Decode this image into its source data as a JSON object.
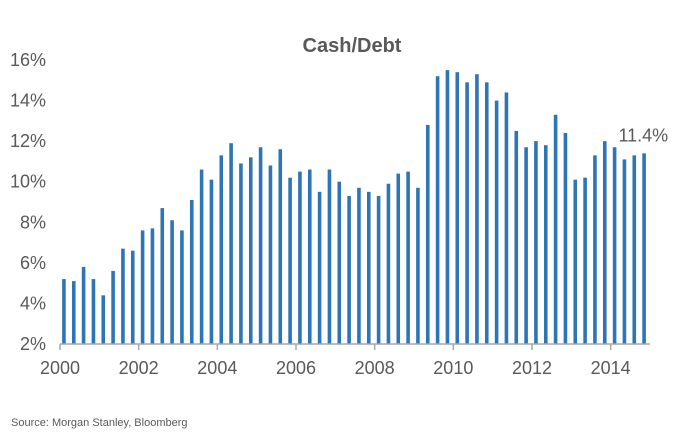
{
  "chart_data": {
    "type": "bar",
    "title": "Cash/Debt",
    "xlabel": "",
    "ylabel": "",
    "bar_color": "#2E75B6",
    "axis_color": "#A6A6A6",
    "text_color": "#595959",
    "ylim": [
      2,
      16
    ],
    "y_ticks": [
      2,
      4,
      6,
      8,
      10,
      12,
      14,
      16
    ],
    "y_tick_labels": [
      "2%",
      "4%",
      "6%",
      "8%",
      "10%",
      "12%",
      "14%",
      "16%"
    ],
    "xlim": [
      2000,
      2015
    ],
    "x_ticks": [
      2000,
      2002,
      2004,
      2006,
      2008,
      2010,
      2012,
      2014
    ],
    "x_tick_labels": [
      "2000",
      "2002",
      "2004",
      "2006",
      "2008",
      "2010",
      "2012",
      "2014"
    ],
    "grid": false,
    "x": [
      2000.0,
      2000.25,
      2000.5,
      2000.75,
      2001.0,
      2001.25,
      2001.5,
      2001.75,
      2002.0,
      2002.25,
      2002.5,
      2002.75,
      2003.0,
      2003.25,
      2003.5,
      2003.75,
      2004.0,
      2004.25,
      2004.5,
      2004.75,
      2005.0,
      2005.25,
      2005.5,
      2005.75,
      2006.0,
      2006.25,
      2006.5,
      2006.75,
      2007.0,
      2007.25,
      2007.5,
      2007.75,
      2008.0,
      2008.25,
      2008.5,
      2008.75,
      2009.0,
      2009.25,
      2009.5,
      2009.75,
      2010.0,
      2010.25,
      2010.5,
      2010.75,
      2011.0,
      2011.25,
      2011.5,
      2011.75,
      2012.0,
      2012.25,
      2012.5,
      2012.75,
      2013.0,
      2013.25,
      2013.5,
      2013.75,
      2014.0,
      2014.25,
      2014.5,
      2014.75
    ],
    "values": [
      5.2,
      5.1,
      5.8,
      5.2,
      4.4,
      5.6,
      6.7,
      6.6,
      7.6,
      7.7,
      8.7,
      8.1,
      7.6,
      9.1,
      10.6,
      10.1,
      11.3,
      11.9,
      10.9,
      11.2,
      11.7,
      10.8,
      11.6,
      10.2,
      10.5,
      10.6,
      9.5,
      10.6,
      10.0,
      9.3,
      9.7,
      9.5,
      9.3,
      9.9,
      10.4,
      10.5,
      9.7,
      12.8,
      15.2,
      15.5,
      15.4,
      14.9,
      15.3,
      14.9,
      14.0,
      14.4,
      12.5,
      11.7,
      12.0,
      11.8,
      13.3,
      12.4,
      10.1,
      10.2,
      11.3,
      12.0,
      11.7,
      11.1,
      11.3,
      11.4
    ],
    "annotation": {
      "text": "11.4%",
      "x": 2014.75,
      "y": 11.4
    }
  },
  "source": "Source: Morgan Stanley, Bloomberg"
}
